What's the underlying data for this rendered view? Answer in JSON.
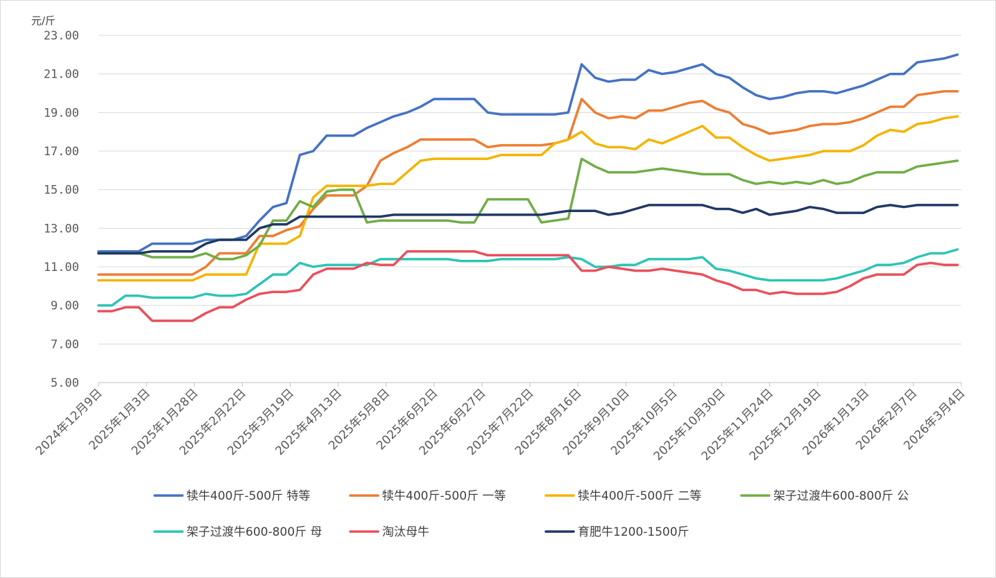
{
  "chart_data": {
    "type": "line",
    "ylabel": "元/斤",
    "ylim": [
      5,
      23
    ],
    "y_ticks": [
      "5.00",
      "7.00",
      "9.00",
      "11.00",
      "13.00",
      "15.00",
      "17.00",
      "19.00",
      "21.00",
      "23.00"
    ],
    "x_tick_labels": [
      "2024年12月9日",
      "2025年1月3日",
      "2025年1月28日",
      "2025年2月22日",
      "2025年3月19日",
      "2025年4月13日",
      "2025年5月8日",
      "2025年6月2日",
      "2025年6月27日",
      "2025年7月22日",
      "2025年8月16日",
      "2025年9月10日",
      "2025年10月5日",
      "2025年10月30日",
      "2025年11月24日",
      "2025年12月19日",
      "2026年1月13日",
      "2026年2月7日",
      "2026年3月4日"
    ],
    "x_range_days": [
      0,
      450
    ],
    "x": [
      0,
      7,
      14,
      21,
      28,
      35,
      42,
      49,
      56,
      63,
      70,
      77,
      84,
      91,
      98,
      105,
      112,
      119,
      126,
      133,
      140,
      147,
      154,
      161,
      168,
      175,
      182,
      189,
      196,
      203,
      210,
      217,
      224,
      231,
      238,
      245,
      252,
      259,
      266,
      273,
      280,
      287,
      294,
      301,
      308,
      315,
      322,
      329,
      336,
      343,
      350,
      357,
      364,
      371,
      378,
      385,
      392,
      399,
      406,
      413,
      420,
      427,
      434,
      441,
      448
    ],
    "series": [
      {
        "name": "犊牛400斤-500斤 特等",
        "color": "#4472C4",
        "values": [
          11.8,
          11.8,
          11.8,
          11.8,
          12.2,
          12.2,
          12.2,
          12.2,
          12.4,
          12.4,
          12.4,
          12.6,
          13.4,
          14.1,
          14.3,
          16.8,
          17.0,
          17.8,
          17.8,
          17.8,
          18.2,
          18.5,
          18.8,
          19.0,
          19.3,
          19.7,
          19.7,
          19.7,
          19.7,
          19.0,
          18.9,
          18.9,
          18.9,
          18.9,
          18.9,
          19.0,
          21.5,
          20.8,
          20.6,
          20.7,
          20.7,
          21.2,
          21.0,
          21.1,
          21.3,
          21.5,
          21.0,
          20.8,
          20.3,
          19.9,
          19.7,
          19.8,
          20.0,
          20.1,
          20.1,
          20.0,
          20.2,
          20.4,
          20.7,
          21.0,
          21.0,
          21.6,
          21.7,
          21.8,
          22.0
        ]
      },
      {
        "name": "犊牛400斤-500斤 一等",
        "color": "#ED7D31",
        "values": [
          10.6,
          10.6,
          10.6,
          10.6,
          10.6,
          10.6,
          10.6,
          10.6,
          11.0,
          11.7,
          11.7,
          11.7,
          12.6,
          12.6,
          12.9,
          13.1,
          14.0,
          14.7,
          14.7,
          14.7,
          15.2,
          16.5,
          16.9,
          17.2,
          17.6,
          17.6,
          17.6,
          17.6,
          17.6,
          17.2,
          17.3,
          17.3,
          17.3,
          17.3,
          17.4,
          17.6,
          19.7,
          19.0,
          18.7,
          18.8,
          18.7,
          19.1,
          19.1,
          19.3,
          19.5,
          19.6,
          19.2,
          19.0,
          18.4,
          18.2,
          17.9,
          18.0,
          18.1,
          18.3,
          18.4,
          18.4,
          18.5,
          18.7,
          19.0,
          19.3,
          19.3,
          19.9,
          20.0,
          20.1,
          20.1
        ]
      },
      {
        "name": "犊牛400斤-500斤 二等",
        "color": "#F4B400",
        "values": [
          10.3,
          10.3,
          10.3,
          10.3,
          10.3,
          10.3,
          10.3,
          10.3,
          10.6,
          10.6,
          10.6,
          10.6,
          12.2,
          12.2,
          12.2,
          12.6,
          14.6,
          15.2,
          15.2,
          15.2,
          15.2,
          15.3,
          15.3,
          15.9,
          16.5,
          16.6,
          16.6,
          16.6,
          16.6,
          16.6,
          16.8,
          16.8,
          16.8,
          16.8,
          17.4,
          17.6,
          18.0,
          17.4,
          17.2,
          17.2,
          17.1,
          17.6,
          17.4,
          17.7,
          18.0,
          18.3,
          17.7,
          17.7,
          17.2,
          16.8,
          16.5,
          16.6,
          16.7,
          16.8,
          17.0,
          17.0,
          17.0,
          17.3,
          17.8,
          18.1,
          18.0,
          18.4,
          18.5,
          18.7,
          18.8
        ]
      },
      {
        "name": "架子过渡牛600-800斤 公",
        "color": "#70AD47",
        "values": [
          11.7,
          11.7,
          11.7,
          11.7,
          11.5,
          11.5,
          11.5,
          11.5,
          11.7,
          11.4,
          11.4,
          11.6,
          12.1,
          13.4,
          13.4,
          14.4,
          14.1,
          14.9,
          15.0,
          15.0,
          13.3,
          13.4,
          13.4,
          13.4,
          13.4,
          13.4,
          13.4,
          13.3,
          13.3,
          14.5,
          14.5,
          14.5,
          14.5,
          13.3,
          13.4,
          13.5,
          16.6,
          16.2,
          15.9,
          15.9,
          15.9,
          16.0,
          16.1,
          16.0,
          15.9,
          15.8,
          15.8,
          15.8,
          15.5,
          15.3,
          15.4,
          15.3,
          15.4,
          15.3,
          15.5,
          15.3,
          15.4,
          15.7,
          15.9,
          15.9,
          15.9,
          16.2,
          16.3,
          16.4,
          16.5
        ]
      },
      {
        "name": "架子过渡牛600-800斤 母",
        "color": "#2EC4B6",
        "values": [
          9.0,
          9.0,
          9.5,
          9.5,
          9.4,
          9.4,
          9.4,
          9.4,
          9.6,
          9.5,
          9.5,
          9.6,
          10.1,
          10.6,
          10.6,
          11.2,
          11.0,
          11.1,
          11.1,
          11.1,
          11.1,
          11.4,
          11.4,
          11.4,
          11.4,
          11.4,
          11.4,
          11.3,
          11.3,
          11.3,
          11.4,
          11.4,
          11.4,
          11.4,
          11.4,
          11.5,
          11.4,
          11.0,
          11.0,
          11.1,
          11.1,
          11.4,
          11.4,
          11.4,
          11.4,
          11.5,
          10.9,
          10.8,
          10.6,
          10.4,
          10.3,
          10.3,
          10.3,
          10.3,
          10.3,
          10.4,
          10.6,
          10.8,
          11.1,
          11.1,
          11.2,
          11.5,
          11.7,
          11.7,
          11.9
        ]
      },
      {
        "name": "淘汰母牛",
        "color": "#E8505B",
        "values": [
          8.7,
          8.7,
          8.9,
          8.9,
          8.2,
          8.2,
          8.2,
          8.2,
          8.6,
          8.9,
          8.9,
          9.3,
          9.6,
          9.7,
          9.7,
          9.8,
          10.6,
          10.9,
          10.9,
          10.9,
          11.2,
          11.1,
          11.1,
          11.8,
          11.8,
          11.8,
          11.8,
          11.8,
          11.8,
          11.6,
          11.6,
          11.6,
          11.6,
          11.6,
          11.6,
          11.6,
          10.8,
          10.8,
          11.0,
          10.9,
          10.8,
          10.8,
          10.9,
          10.8,
          10.7,
          10.6,
          10.3,
          10.1,
          9.8,
          9.8,
          9.6,
          9.7,
          9.6,
          9.6,
          9.6,
          9.7,
          10.0,
          10.4,
          10.6,
          10.6,
          10.6,
          11.1,
          11.2,
          11.1,
          11.1
        ]
      },
      {
        "name": "育肥牛1200-1500斤",
        "color": "#203864",
        "values": [
          11.7,
          11.7,
          11.7,
          11.7,
          11.8,
          11.8,
          11.8,
          11.8,
          12.2,
          12.4,
          12.4,
          12.4,
          13.0,
          13.2,
          13.2,
          13.6,
          13.6,
          13.6,
          13.6,
          13.6,
          13.6,
          13.6,
          13.7,
          13.7,
          13.7,
          13.7,
          13.7,
          13.7,
          13.7,
          13.7,
          13.7,
          13.7,
          13.7,
          13.7,
          13.8,
          13.9,
          13.9,
          13.9,
          13.7,
          13.8,
          14.0,
          14.2,
          14.2,
          14.2,
          14.2,
          14.2,
          14.0,
          14.0,
          13.8,
          14.0,
          13.7,
          13.8,
          13.9,
          14.1,
          14.0,
          13.8,
          13.8,
          13.8,
          14.1,
          14.2,
          14.1,
          14.2,
          14.2,
          14.2,
          14.2
        ]
      }
    ],
    "legend_position": "bottom"
  }
}
